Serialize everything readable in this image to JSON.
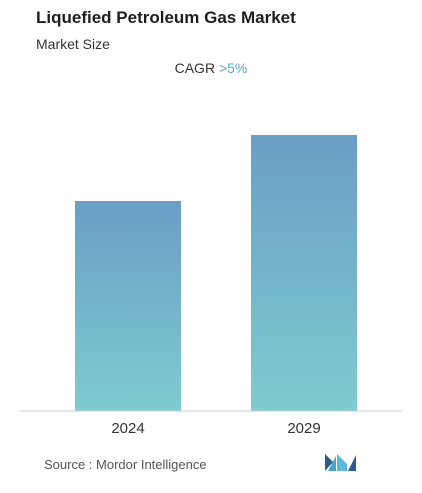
{
  "header": {
    "title": "Liquefied Petroleum Gas Market",
    "subtitle": "Market Size",
    "cagr_label": "CAGR",
    "cagr_value": ">5%"
  },
  "footer": {
    "source_label": "Source :",
    "source_name": "Mordor Intelligence",
    "logo_text": "Mordor Intelligence"
  },
  "colors": {
    "bar_top": "#6a9ec6",
    "bar_bottom": "#7ecbd0",
    "accent": "#5aa5c9"
  },
  "chart_data": {
    "type": "bar",
    "categories": [
      "2024",
      "2029"
    ],
    "values": [
      0.7,
      0.92
    ],
    "ylim": [
      0,
      1
    ],
    "grid": false
  }
}
